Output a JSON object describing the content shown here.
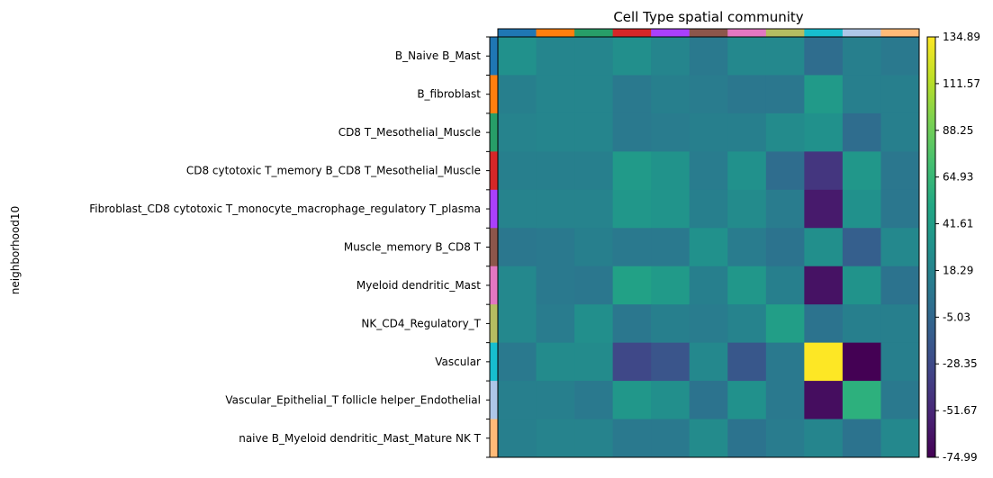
{
  "chart_data": {
    "type": "heatmap",
    "title": "Cell Type spatial community",
    "ylabel": "neighborhood10",
    "rows": [
      "B_Naive B_Mast",
      "B_fibroblast",
      "CD8 T_Mesothelial_Muscle",
      "CD8 cytotoxic T_memory B_CD8 T_Mesothelial_Muscle",
      "Fibroblast_CD8 cytotoxic T_monocyte_macrophage_regulatory T_plasma",
      "Muscle_memory B_CD8 T",
      "Myeloid dendritic_Mast",
      "NK_CD4_Regulatory_T",
      "Vascular",
      "Vascular_Epithelial_T follicle helper_Endothelial",
      "naive B_Myeloid dendritic_Mast_Mature NK T"
    ],
    "row_colors": [
      "#1f77b4",
      "#ff7f0e",
      "#279e68",
      "#d62728",
      "#aa40fc",
      "#8c564b",
      "#e377c2",
      "#b5bd61",
      "#17becf",
      "#aec7e8",
      "#ffbb78"
    ],
    "column_colors": [
      "#1f77b4",
      "#ff7f0e",
      "#279e68",
      "#d62728",
      "#aa40fc",
      "#8c564b",
      "#e377c2",
      "#b5bd61",
      "#17becf",
      "#aec7e8",
      "#ffbb78"
    ],
    "values": [
      [
        30,
        20,
        20,
        28,
        20,
        10,
        22,
        22,
        0,
        15,
        10
      ],
      [
        15,
        20,
        20,
        10,
        15,
        12,
        8,
        8,
        38,
        15,
        15
      ],
      [
        18,
        20,
        20,
        10,
        12,
        15,
        15,
        25,
        30,
        0,
        15
      ],
      [
        15,
        15,
        15,
        38,
        32,
        12,
        30,
        0,
        -42,
        35,
        8
      ],
      [
        18,
        18,
        18,
        35,
        33,
        15,
        25,
        12,
        -60,
        30,
        8
      ],
      [
        8,
        10,
        15,
        10,
        10,
        30,
        12,
        5,
        28,
        -12,
        22
      ],
      [
        22,
        10,
        8,
        45,
        38,
        15,
        35,
        15,
        -65,
        32,
        5
      ],
      [
        22,
        12,
        28,
        8,
        15,
        12,
        18,
        42,
        5,
        15,
        15
      ],
      [
        10,
        25,
        25,
        -30,
        -20,
        22,
        -18,
        10,
        134.89,
        -74.99,
        15
      ],
      [
        15,
        15,
        10,
        35,
        28,
        5,
        30,
        10,
        -68,
        58,
        10
      ],
      [
        15,
        18,
        18,
        10,
        10,
        25,
        5,
        12,
        20,
        5,
        22
      ]
    ],
    "colorbar": {
      "min": -74.99,
      "max": 134.89,
      "ticks": [
        "134.89",
        "111.57",
        "88.25",
        "64.93",
        "41.61",
        "18.29",
        "-5.03",
        "-28.35",
        "-51.67",
        "-74.99"
      ]
    },
    "colormap": "viridis"
  }
}
